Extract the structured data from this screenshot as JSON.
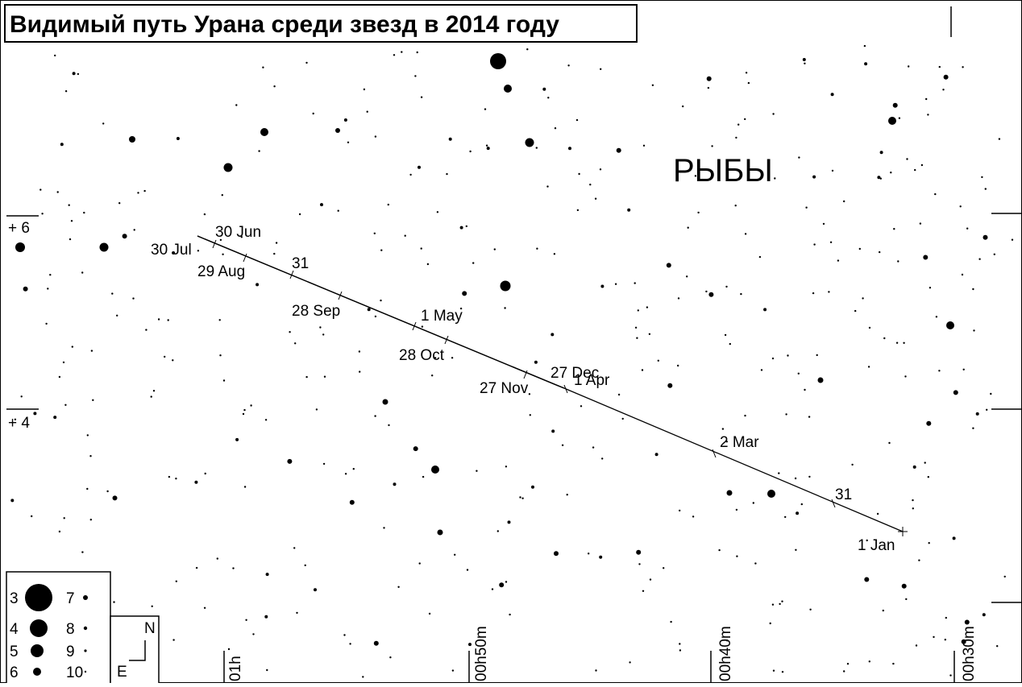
{
  "title": "Видимый путь Урана среди звезд в 2014 году",
  "constellation": "РЫБЫ",
  "path_labels": [
    "30 Jun",
    "30 Jul",
    "29 Aug",
    "31",
    "28 Sep",
    "1 May",
    "28 Oct",
    "27 Dec",
    "27 Nov",
    "1 Apr",
    "2 Mar",
    "31",
    "1 Jan"
  ],
  "ra_labels": [
    "01h",
    "00h50m",
    "00h40m",
    "00h30m"
  ],
  "dec_labels": [
    "+ 6",
    "+ 4"
  ],
  "legend": {
    "magnitudes": [
      3,
      4,
      5,
      6,
      7,
      8,
      9,
      10
    ]
  },
  "compass": {
    "north": "N",
    "east": "E"
  }
}
